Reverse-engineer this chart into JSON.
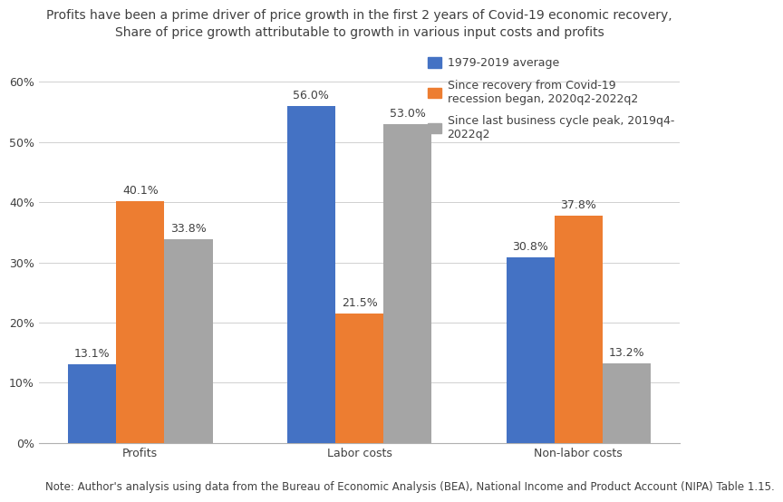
{
  "title_line1": "Profits have been a prime driver of price growth in the first 2 years of Covid-19 economic recovery,",
  "title_line2": "Share of price growth attributable to growth in various input costs and profits",
  "categories": [
    "Profits",
    "Labor costs",
    "Non-labor costs"
  ],
  "series_names": [
    "1979-2019 average",
    "Since recovery from Covid-19\nrecession began, 2020q2-2022q2",
    "Since last business cycle peak, 2019q4-\n2022q2"
  ],
  "series_values": [
    [
      13.1,
      56.0,
      30.8
    ],
    [
      40.1,
      21.5,
      37.8
    ],
    [
      33.8,
      53.0,
      13.2
    ]
  ],
  "colors": [
    "#4472c4",
    "#ed7d31",
    "#a5a5a5"
  ],
  "legend_labels": [
    "1979-2019 average",
    "Since recovery from Covid-19\nrecession began, 2020q2-2022q2",
    "Since last business cycle peak, 2019q4-\n2022q2"
  ],
  "ylim": [
    0,
    65
  ],
  "yticks": [
    0,
    10,
    20,
    30,
    40,
    50,
    60
  ],
  "ytick_labels": [
    "0%",
    "10%",
    "20%",
    "30%",
    "40%",
    "50%",
    "60%"
  ],
  "note": "Note: Author's analysis using data from the Bureau of Economic Analysis (BEA), National Income and Product Account (NIPA) Table 1.15.",
  "bar_width": 0.22,
  "background_color": "#ffffff",
  "title_fontsize": 10.0,
  "label_fontsize": 9,
  "tick_fontsize": 9,
  "legend_fontsize": 9,
  "note_fontsize": 8.5
}
